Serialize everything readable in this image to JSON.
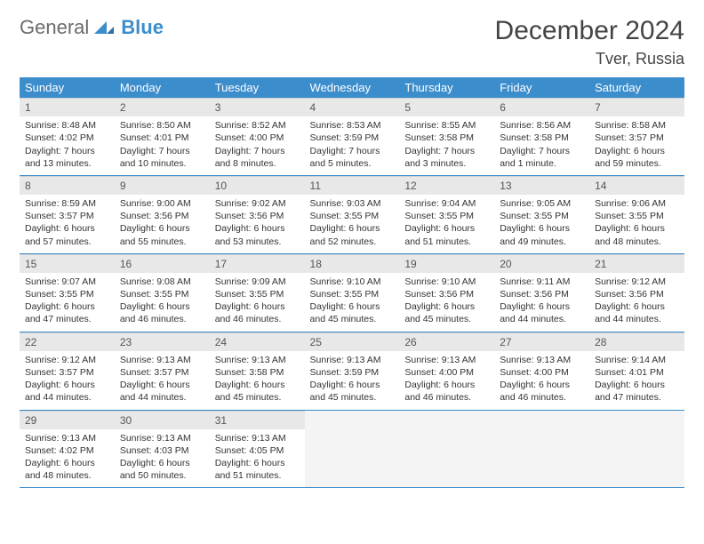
{
  "brand": {
    "general": "General",
    "blue": "Blue"
  },
  "colors": {
    "header_bg": "#3c8dcc",
    "header_text": "#ffffff",
    "daynum_bg": "#e8e8e8",
    "border": "#3c8dcc"
  },
  "title": "December 2024",
  "location": "Tver, Russia",
  "weekdays": [
    "Sunday",
    "Monday",
    "Tuesday",
    "Wednesday",
    "Thursday",
    "Friday",
    "Saturday"
  ],
  "weeks": [
    [
      {
        "n": "1",
        "sunrise": "Sunrise: 8:48 AM",
        "sunset": "Sunset: 4:02 PM",
        "day": "Daylight: 7 hours and 13 minutes."
      },
      {
        "n": "2",
        "sunrise": "Sunrise: 8:50 AM",
        "sunset": "Sunset: 4:01 PM",
        "day": "Daylight: 7 hours and 10 minutes."
      },
      {
        "n": "3",
        "sunrise": "Sunrise: 8:52 AM",
        "sunset": "Sunset: 4:00 PM",
        "day": "Daylight: 7 hours and 8 minutes."
      },
      {
        "n": "4",
        "sunrise": "Sunrise: 8:53 AM",
        "sunset": "Sunset: 3:59 PM",
        "day": "Daylight: 7 hours and 5 minutes."
      },
      {
        "n": "5",
        "sunrise": "Sunrise: 8:55 AM",
        "sunset": "Sunset: 3:58 PM",
        "day": "Daylight: 7 hours and 3 minutes."
      },
      {
        "n": "6",
        "sunrise": "Sunrise: 8:56 AM",
        "sunset": "Sunset: 3:58 PM",
        "day": "Daylight: 7 hours and 1 minute."
      },
      {
        "n": "7",
        "sunrise": "Sunrise: 8:58 AM",
        "sunset": "Sunset: 3:57 PM",
        "day": "Daylight: 6 hours and 59 minutes."
      }
    ],
    [
      {
        "n": "8",
        "sunrise": "Sunrise: 8:59 AM",
        "sunset": "Sunset: 3:57 PM",
        "day": "Daylight: 6 hours and 57 minutes."
      },
      {
        "n": "9",
        "sunrise": "Sunrise: 9:00 AM",
        "sunset": "Sunset: 3:56 PM",
        "day": "Daylight: 6 hours and 55 minutes."
      },
      {
        "n": "10",
        "sunrise": "Sunrise: 9:02 AM",
        "sunset": "Sunset: 3:56 PM",
        "day": "Daylight: 6 hours and 53 minutes."
      },
      {
        "n": "11",
        "sunrise": "Sunrise: 9:03 AM",
        "sunset": "Sunset: 3:55 PM",
        "day": "Daylight: 6 hours and 52 minutes."
      },
      {
        "n": "12",
        "sunrise": "Sunrise: 9:04 AM",
        "sunset": "Sunset: 3:55 PM",
        "day": "Daylight: 6 hours and 51 minutes."
      },
      {
        "n": "13",
        "sunrise": "Sunrise: 9:05 AM",
        "sunset": "Sunset: 3:55 PM",
        "day": "Daylight: 6 hours and 49 minutes."
      },
      {
        "n": "14",
        "sunrise": "Sunrise: 9:06 AM",
        "sunset": "Sunset: 3:55 PM",
        "day": "Daylight: 6 hours and 48 minutes."
      }
    ],
    [
      {
        "n": "15",
        "sunrise": "Sunrise: 9:07 AM",
        "sunset": "Sunset: 3:55 PM",
        "day": "Daylight: 6 hours and 47 minutes."
      },
      {
        "n": "16",
        "sunrise": "Sunrise: 9:08 AM",
        "sunset": "Sunset: 3:55 PM",
        "day": "Daylight: 6 hours and 46 minutes."
      },
      {
        "n": "17",
        "sunrise": "Sunrise: 9:09 AM",
        "sunset": "Sunset: 3:55 PM",
        "day": "Daylight: 6 hours and 46 minutes."
      },
      {
        "n": "18",
        "sunrise": "Sunrise: 9:10 AM",
        "sunset": "Sunset: 3:55 PM",
        "day": "Daylight: 6 hours and 45 minutes."
      },
      {
        "n": "19",
        "sunrise": "Sunrise: 9:10 AM",
        "sunset": "Sunset: 3:56 PM",
        "day": "Daylight: 6 hours and 45 minutes."
      },
      {
        "n": "20",
        "sunrise": "Sunrise: 9:11 AM",
        "sunset": "Sunset: 3:56 PM",
        "day": "Daylight: 6 hours and 44 minutes."
      },
      {
        "n": "21",
        "sunrise": "Sunrise: 9:12 AM",
        "sunset": "Sunset: 3:56 PM",
        "day": "Daylight: 6 hours and 44 minutes."
      }
    ],
    [
      {
        "n": "22",
        "sunrise": "Sunrise: 9:12 AM",
        "sunset": "Sunset: 3:57 PM",
        "day": "Daylight: 6 hours and 44 minutes."
      },
      {
        "n": "23",
        "sunrise": "Sunrise: 9:13 AM",
        "sunset": "Sunset: 3:57 PM",
        "day": "Daylight: 6 hours and 44 minutes."
      },
      {
        "n": "24",
        "sunrise": "Sunrise: 9:13 AM",
        "sunset": "Sunset: 3:58 PM",
        "day": "Daylight: 6 hours and 45 minutes."
      },
      {
        "n": "25",
        "sunrise": "Sunrise: 9:13 AM",
        "sunset": "Sunset: 3:59 PM",
        "day": "Daylight: 6 hours and 45 minutes."
      },
      {
        "n": "26",
        "sunrise": "Sunrise: 9:13 AM",
        "sunset": "Sunset: 4:00 PM",
        "day": "Daylight: 6 hours and 46 minutes."
      },
      {
        "n": "27",
        "sunrise": "Sunrise: 9:13 AM",
        "sunset": "Sunset: 4:00 PM",
        "day": "Daylight: 6 hours and 46 minutes."
      },
      {
        "n": "28",
        "sunrise": "Sunrise: 9:14 AM",
        "sunset": "Sunset: 4:01 PM",
        "day": "Daylight: 6 hours and 47 minutes."
      }
    ],
    [
      {
        "n": "29",
        "sunrise": "Sunrise: 9:13 AM",
        "sunset": "Sunset: 4:02 PM",
        "day": "Daylight: 6 hours and 48 minutes."
      },
      {
        "n": "30",
        "sunrise": "Sunrise: 9:13 AM",
        "sunset": "Sunset: 4:03 PM",
        "day": "Daylight: 6 hours and 50 minutes."
      },
      {
        "n": "31",
        "sunrise": "Sunrise: 9:13 AM",
        "sunset": "Sunset: 4:05 PM",
        "day": "Daylight: 6 hours and 51 minutes."
      },
      null,
      null,
      null,
      null
    ]
  ]
}
